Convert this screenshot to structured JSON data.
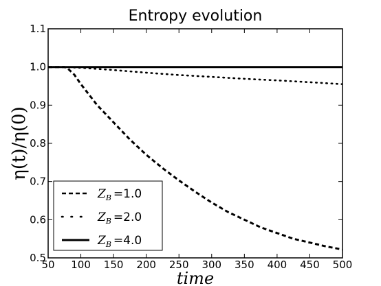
{
  "chart_data": {
    "type": "line",
    "title": "Entropy evolution",
    "xlabel": "time",
    "ylabel": "η(t)/η(0)",
    "xlim": [
      50,
      500
    ],
    "ylim": [
      0.5,
      1.1
    ],
    "x_ticks": [
      "50",
      "100",
      "150",
      "200",
      "250",
      "300",
      "350",
      "400",
      "450",
      "500"
    ],
    "y_ticks": [
      "0.5",
      "0.6",
      "0.7",
      "0.8",
      "0.9",
      "1.0",
      "1.1"
    ],
    "grid": false,
    "legend_position": "bottom-left",
    "series": [
      {
        "name": "Z_B = 1.0",
        "legend_label": "Z",
        "legend_sub": "B",
        "legend_value": "=1.0",
        "line_style": "dashed",
        "color": "#000000",
        "x": [
          50,
          75,
          80,
          90,
          100,
          125,
          150,
          175,
          200,
          225,
          250,
          275,
          300,
          325,
          350,
          375,
          400,
          425,
          450,
          475,
          500
        ],
        "y": [
          1.0,
          1.0,
          0.996,
          0.98,
          0.955,
          0.9,
          0.855,
          0.81,
          0.77,
          0.735,
          0.703,
          0.673,
          0.645,
          0.62,
          0.6,
          0.58,
          0.565,
          0.55,
          0.54,
          0.53,
          0.522
        ]
      },
      {
        "name": "Z_B = 2.0",
        "legend_label": "Z",
        "legend_sub": "B",
        "legend_value": "=2.0",
        "line_style": "dotted",
        "color": "#000000",
        "x": [
          50,
          75,
          100,
          150,
          200,
          250,
          300,
          350,
          400,
          450,
          500
        ],
        "y": [
          1.0,
          1.0,
          0.998,
          0.992,
          0.985,
          0.979,
          0.974,
          0.969,
          0.965,
          0.96,
          0.955
        ]
      },
      {
        "name": "Z_B = 4.0",
        "legend_label": "Z",
        "legend_sub": "B",
        "legend_value": "=4.0",
        "line_style": "solid",
        "color": "#000000",
        "x": [
          50,
          500
        ],
        "y": [
          1.0,
          1.0
        ]
      }
    ]
  }
}
